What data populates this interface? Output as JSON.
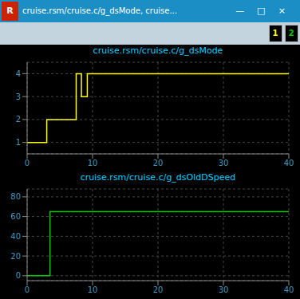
{
  "chart_data": [
    {
      "type": "line",
      "title": "cruise.rsm/cruise.c/g_dsMode",
      "annotations": [
        "R",
        "cruise.rsm/cruise.c/g_dsMode, cruise...",
        "—",
        "□",
        "×",
        "1",
        "2"
      ],
      "x": [
        0,
        3,
        3,
        7.5,
        7.5,
        8.3,
        8.3,
        9.2,
        9.2,
        40
      ],
      "values": [
        1,
        1,
        2,
        2,
        4,
        4,
        3,
        3,
        4,
        4
      ],
      "color": "#ffff00",
      "line_style": "step",
      "xlim": [
        0,
        40
      ],
      "ylim": [
        0.5,
        4.5
      ],
      "xticks": [
        0,
        10,
        20,
        30,
        40
      ],
      "yticks": [
        1,
        2,
        3,
        4
      ],
      "grid": true
    },
    {
      "type": "line",
      "title": "cruise.rsm/cruise.c/g_dsOldDSpeed",
      "x": [
        0,
        3.5,
        3.5,
        29,
        29,
        40
      ],
      "values": [
        0,
        0,
        65,
        65,
        65,
        65
      ],
      "color": "#00cc00",
      "line_style": "step",
      "xlim": [
        0,
        40
      ],
      "ylim": [
        -5,
        88
      ],
      "xticks": [
        0,
        10,
        20,
        30,
        40
      ],
      "yticks": [
        0,
        20,
        40,
        60,
        80
      ],
      "grid": true
    }
  ]
}
